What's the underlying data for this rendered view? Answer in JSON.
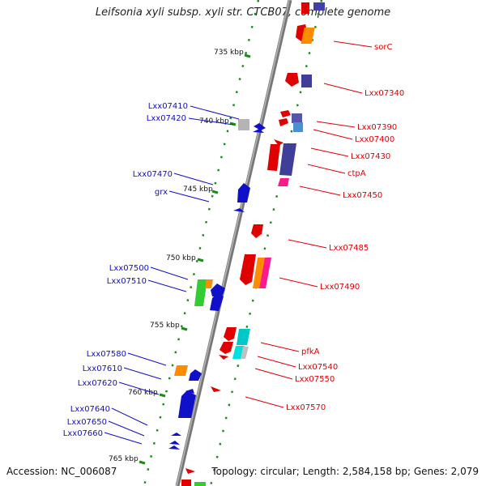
{
  "title": "Leifsonia xyli subsp. xyli str. CTCB07, complete genome",
  "accession": "Accession: NC_006087",
  "topology": "Topology: circular; Length: 2,584,158 bp; Genes: 2,079",
  "colors": {
    "forward": "#e00000",
    "reverse": "#1010c8",
    "tick": "#1a8a1a",
    "backbone": "#888888"
  },
  "kbp_labels": [
    "735 kbp",
    "740 kbp",
    "745 kbp",
    "750 kbp",
    "755 kbp",
    "760 kbp",
    "765 kbp"
  ],
  "right_labels": [
    "sorC",
    "Lxx07340",
    "Lxx07390",
    "Lxx07400",
    "Lxx07430",
    "ctpA",
    "Lxx07450",
    "Lxx07485",
    "Lxx07490",
    "pfkA",
    "Lxx07540",
    "Lxx07550",
    "Lxx07570"
  ],
  "left_labels": [
    "Lxx07410",
    "Lxx07420",
    "Lxx07470",
    "grx",
    "Lxx07500",
    "Lxx07510",
    "Lxx07580",
    "Lxx07610",
    "Lxx07620",
    "Lxx07640",
    "Lxx07650",
    "Lxx07660"
  ]
}
